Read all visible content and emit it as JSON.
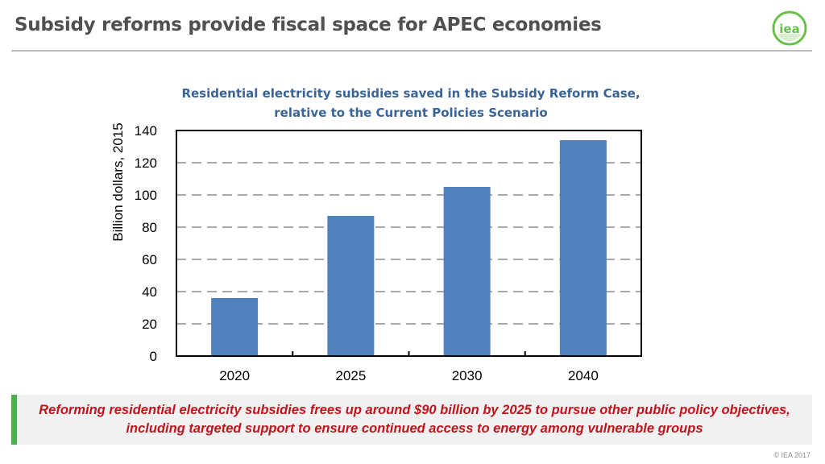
{
  "header": {
    "title": "Subsidy reforms provide fiscal space for APEC economies",
    "logo_text": "iea",
    "logo_color": "#6abf4b"
  },
  "chart_title": {
    "line1": "Residential electricity subsidies saved in the Subsidy Reform Case,",
    "line2": "relative to the Current Policies Scenario"
  },
  "chart_data": {
    "type": "bar",
    "categories": [
      "2020",
      "2025",
      "2030",
      "2040"
    ],
    "values": [
      36,
      87,
      105,
      134
    ],
    "title": "Residential electricity subsidies saved in the Subsidy Reform Case, relative to the Current Policies Scenario",
    "xlabel": "",
    "ylabel": "Billion dollars, 2015",
    "ylim": [
      0,
      140
    ],
    "yticks": [
      0,
      20,
      40,
      60,
      80,
      100,
      120,
      140
    ],
    "grid": "dashed-horizontal",
    "bar_color": "#4f81bd"
  },
  "callout": {
    "line1": "Reforming residential electricity subsidies frees up around $90 billion by 2025 to pursue other public policy objectives,",
    "line2": "including targeted support to ensure continued access to energy among vulnerable groups",
    "accent_color": "#4ab04a",
    "text_color": "#c0141c"
  },
  "footer": {
    "copyright": "© IEA 2017"
  }
}
